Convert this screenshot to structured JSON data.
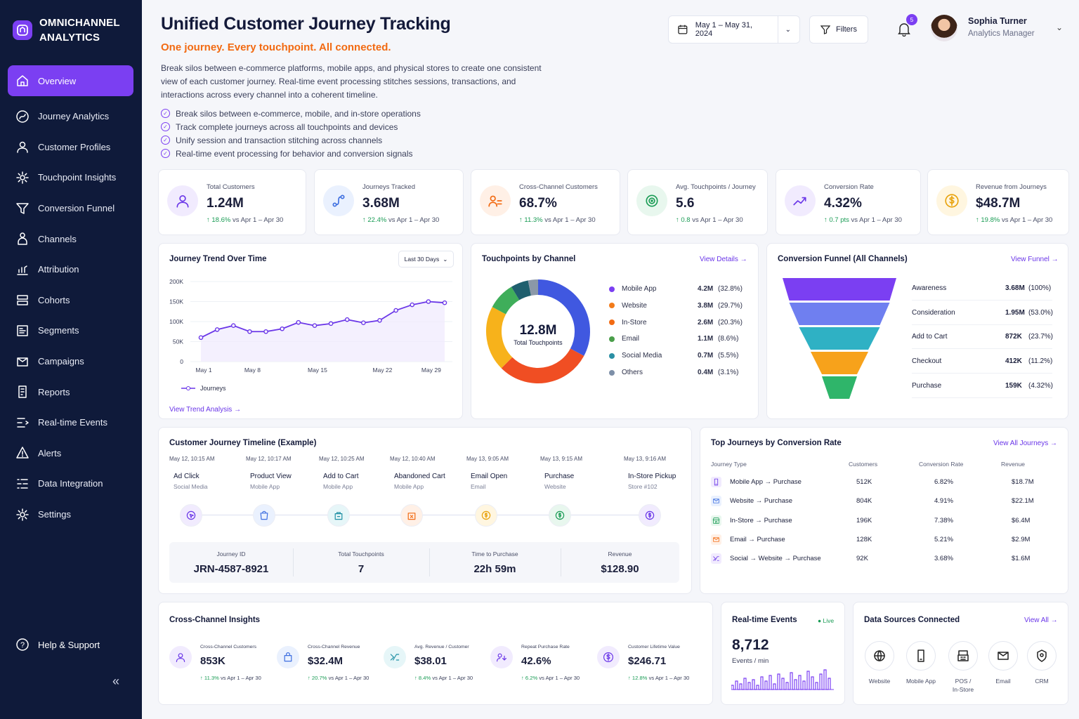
{
  "app": {
    "name_line1": "OMNICHANNEL",
    "name_line2": "ANALYTICS"
  },
  "nav": [
    {
      "label": "Overview",
      "icon": "home-icon"
    },
    {
      "label": "Journey Analytics",
      "icon": "journey-icon"
    },
    {
      "label": "Customer Profiles",
      "icon": "user-icon"
    },
    {
      "label": "Touchpoint Insights",
      "icon": "gear-icon"
    },
    {
      "label": "Conversion Funnel",
      "icon": "funnel-icon"
    },
    {
      "label": "Channels",
      "icon": "channels-icon"
    },
    {
      "label": "Attribution",
      "icon": "attribution-icon"
    },
    {
      "label": "Cohorts",
      "icon": "cohorts-icon"
    },
    {
      "label": "Segments",
      "icon": "segments-icon"
    },
    {
      "label": "Campaigns",
      "icon": "campaigns-icon"
    },
    {
      "label": "Reports",
      "icon": "reports-icon"
    },
    {
      "label": "Real-time Events",
      "icon": "realtime-icon"
    },
    {
      "label": "Alerts",
      "icon": "alert-icon"
    },
    {
      "label": "Data Integration",
      "icon": "integration-icon"
    },
    {
      "label": "Settings",
      "icon": "settings-icon"
    }
  ],
  "help": "Help & Support",
  "header": {
    "title": "Unified Customer Journey Tracking",
    "subtitle": "One journey. Every touchpoint. All connected.",
    "description": "Break silos between e-commerce platforms, mobile apps, and physical stores to create one consistent view of each customer journey. Real-time event processing stitches sessions, transactions, and interactions across every channel into a coherent timeline.",
    "checks": [
      "Break silos between e-commerce, mobile, and in-store operations",
      "Track complete journeys across all touchpoints and devices",
      "Unify session and transaction stitching across channels",
      "Real-time event processing for behavior and conversion signals"
    ],
    "date_range": "May 1 – May 31, 2024",
    "filters": "Filters",
    "notifications": "5",
    "user_name": "Sophia Turner",
    "user_role": "Analytics Manager"
  },
  "kpis": [
    {
      "label": "Total Customers",
      "value": "1.24M",
      "delta": "↑ 18.6%",
      "compare": " vs Apr 1 – Apr 30",
      "icon": "users-icon",
      "bg": "#f1ebfe",
      "fg": "#6a36e8"
    },
    {
      "label": "Journeys Tracked",
      "value": "3.68M",
      "delta": "↑ 22.4%",
      "compare": " vs Apr 1 – Apr 30",
      "icon": "route-icon",
      "bg": "#eaf1fe",
      "fg": "#3e6fe0"
    },
    {
      "label": "Cross-Channel Customers",
      "value": "68.7%",
      "delta": "↑ 11.3%",
      "compare": " vs Apr 1 – Apr 30",
      "icon": "cross-users-icon",
      "bg": "#fff0e6",
      "fg": "#f26a12"
    },
    {
      "label": "Avg. Touchpoints / Journey",
      "value": "5.6",
      "delta": "↑ 0.8",
      "compare": " vs Apr 1 – Apr 30",
      "icon": "target-icon",
      "bg": "#e8f7ee",
      "fg": "#1a9c55"
    },
    {
      "label": "Conversion Rate",
      "value": "4.32%",
      "delta": "↑ 0.7 pts",
      "compare": " vs Apr 1 – Apr 30",
      "icon": "trend-icon",
      "bg": "#f1ebfe",
      "fg": "#6a36e8"
    },
    {
      "label": "Revenue from Journeys",
      "value": "$48.7M",
      "delta": "↑ 19.8%",
      "compare": " vs Apr 1 – Apr 30",
      "icon": "dollar-icon",
      "bg": "#fff6e0",
      "fg": "#e8a20c"
    }
  ],
  "trend": {
    "title": "Journey Trend Over Time",
    "range": "Last 30 Days",
    "legend": "Journeys",
    "link": "View Trend Analysis →"
  },
  "chart_data": [
    {
      "type": "line",
      "title": "Journey Trend Over Time",
      "x": [
        "May 1",
        "May 3",
        "May 5",
        "May 8",
        "May 10",
        "May 12",
        "May 14",
        "May 15",
        "May 17",
        "May 19",
        "May 20",
        "May 22",
        "May 24",
        "May 26",
        "May 29",
        "May 31"
      ],
      "xticks": [
        "May 1",
        "May 8",
        "May 15",
        "May 22",
        "May 29"
      ],
      "yticks": [
        "0",
        "50K",
        "100K",
        "150K",
        "200K"
      ],
      "ylim": [
        0,
        200000
      ],
      "series": [
        {
          "name": "Journeys",
          "values": [
            60000,
            80000,
            90000,
            75000,
            75000,
            82000,
            98000,
            90000,
            95000,
            105000,
            97000,
            103000,
            128000,
            142000,
            150000,
            147000
          ]
        }
      ],
      "grid": true,
      "legend_position": "bottom-left"
    },
    {
      "type": "pie",
      "title": "Touchpoints by Channel",
      "center_value": "12.8M",
      "center_label": "Total Touchpoints",
      "slices": [
        {
          "name": "Mobile App",
          "value": "4.2M",
          "pct": "(32.8%)",
          "share": 32.8,
          "color": "#4058e0"
        },
        {
          "name": "Website",
          "value": "3.8M",
          "pct": "(29.7%)",
          "share": 29.7,
          "color": "#f04e23"
        },
        {
          "name": "In-Store",
          "value": "2.6M",
          "pct": "(20.3%)",
          "share": 20.3,
          "color": "#f7b21b"
        },
        {
          "name": "Email",
          "value": "1.1M",
          "pct": "(8.6%)",
          "share": 8.6,
          "color": "#3fae5a"
        },
        {
          "name": "Social Media",
          "value": "0.7M",
          "pct": "(5.5%)",
          "share": 5.5,
          "color": "#1f5f6e"
        },
        {
          "name": "Others",
          "value": "0.4M",
          "pct": "(3.1%)",
          "share": 3.1,
          "color": "#8b98a8"
        }
      ],
      "legend_dot_colors": [
        "#7b3ff2",
        "#f27b1a",
        "#f26a12",
        "#4a9e4a",
        "#2a8fa4",
        "#7d8fa8"
      ]
    },
    {
      "type": "bar",
      "title": "Conversion Funnel (All Channels)",
      "categories": [
        "Awareness",
        "Consideration",
        "Add to Cart",
        "Checkout",
        "Purchase"
      ],
      "values": [
        "3.68M",
        "1.95M",
        "872K",
        "412K",
        "159K"
      ],
      "pct": [
        "(100%)",
        "(53.0%)",
        "(23.7%)",
        "(11.2%)",
        "(4.32%)"
      ],
      "shares": [
        100,
        53.0,
        23.7,
        11.2,
        4.32
      ],
      "colors": [
        "#7b3ff2",
        "#6f7ff0",
        "#2fb1c4",
        "#f7a21b",
        "#2fb56a"
      ]
    }
  ],
  "touchpoints": {
    "title": "Touchpoints by Channel",
    "link": "View Details →"
  },
  "funnel": {
    "title": "Conversion Funnel (All Channels)",
    "link": "View Funnel →"
  },
  "timeline": {
    "title": "Customer Journey Timeline (Example)",
    "steps": [
      {
        "time": "May 12, 10:15 AM",
        "event": "Ad Click",
        "channel": "Social Media",
        "color": "#6a36e8",
        "bg": "#f1ebfe",
        "icon": "ad-click-icon"
      },
      {
        "time": "May 12, 10:17 AM",
        "event": "Product View",
        "channel": "Mobile App",
        "color": "#3e6fe0",
        "bg": "#eaf1fe",
        "icon": "product-view-icon"
      },
      {
        "time": "May 12, 10:25 AM",
        "event": "Add to Cart",
        "channel": "Mobile App",
        "color": "#1f8fa4",
        "bg": "#e6f6f8",
        "icon": "cart-icon"
      },
      {
        "time": "May 12, 10:40 AM",
        "event": "Abandoned Cart",
        "channel": "Mobile App",
        "color": "#f26a12",
        "bg": "#fff0e6",
        "icon": "abandoned-cart-icon"
      },
      {
        "time": "May 13, 9:05 AM",
        "event": "Email Open",
        "channel": "Email",
        "color": "#e8a20c",
        "bg": "#fff6e0",
        "icon": "email-open-icon"
      },
      {
        "time": "May 13, 9:15 AM",
        "event": "Purchase",
        "channel": "Website",
        "color": "#1a9c55",
        "bg": "#e8f7ee",
        "icon": "purchase-icon"
      },
      {
        "time": "May 13, 9:16 AM",
        "event": "In-Store Pickup",
        "channel": "Store #102",
        "color": "#6a36e8",
        "bg": "#f1ebfe",
        "icon": "pickup-icon"
      }
    ],
    "summary": [
      {
        "label": "Journey ID",
        "value": "JRN-4587-8921"
      },
      {
        "label": "Total Touchpoints",
        "value": "7"
      },
      {
        "label": "Time to Purchase",
        "value": "22h 59m"
      },
      {
        "label": "Revenue",
        "value": "$128.90"
      }
    ]
  },
  "top_journeys": {
    "title": "Top Journeys by Conversion Rate",
    "link": "View All Journeys →",
    "columns": [
      "Journey Type",
      "Customers",
      "Conversion Rate",
      "Revenue"
    ],
    "rows": [
      {
        "type": "Mobile App → Purchase",
        "customers": "512K",
        "rate": "6.82%",
        "revenue": "$18.7M",
        "icon": "mobile-icon",
        "color": "#6a36e8",
        "bg": "#f1ebfe"
      },
      {
        "type": "Website → Purchase",
        "customers": "804K",
        "rate": "4.91%",
        "revenue": "$22.1M",
        "icon": "website-icon",
        "color": "#3e6fe0",
        "bg": "#eaf1fe"
      },
      {
        "type": "In-Store → Purchase",
        "customers": "196K",
        "rate": "7.38%",
        "revenue": "$6.4M",
        "icon": "store-icon",
        "color": "#1a9c55",
        "bg": "#e8f7ee"
      },
      {
        "type": "Email → Purchase",
        "customers": "128K",
        "rate": "5.21%",
        "revenue": "$2.9M",
        "icon": "email-icon",
        "color": "#f26a12",
        "bg": "#fff0e6"
      },
      {
        "type": "Social → Website → Purchase",
        "customers": "92K",
        "rate": "3.68%",
        "revenue": "$1.6M",
        "icon": "social-icon",
        "color": "#6a36e8",
        "bg": "#f1ebfe"
      }
    ]
  },
  "insights": {
    "title": "Cross-Channel Insights",
    "items": [
      {
        "label": "Cross-Channel Customers",
        "value": "853K",
        "delta": "↑ 11.3%",
        "compare": " vs Apr 1 – Apr 30",
        "color": "#6a36e8",
        "bg": "#f1ebfe",
        "icon": "users-icon"
      },
      {
        "label": "Cross-Channel Revenue",
        "value": "$32.4M",
        "delta": "↑ 20.7%",
        "compare": " vs Apr 1 – Apr 30",
        "color": "#3e6fe0",
        "bg": "#eaf1fe",
        "icon": "bag-icon"
      },
      {
        "label": "Avg. Revenue / Customer",
        "value": "$38.01",
        "delta": "↑ 8.4%",
        "compare": " vs Apr 1 – Apr 30",
        "color": "#1f8fa4",
        "bg": "#e6f6f8",
        "icon": "shuffle-icon"
      },
      {
        "label": "Repeat Purchase Rate",
        "value": "42.6%",
        "delta": "↑ 6.2%",
        "compare": " vs Apr 1 – Apr 30",
        "color": "#6a36e8",
        "bg": "#f1ebfe",
        "icon": "repeat-icon"
      },
      {
        "label": "Customer Lifetime Value",
        "value": "$246.71",
        "delta": "↑ 12.8%",
        "compare": " vs Apr 1 – Apr 30",
        "color": "#6a36e8",
        "bg": "#f1ebfe",
        "icon": "dollar-icon"
      }
    ]
  },
  "realtime": {
    "title": "Real-time Events",
    "live": "● Live",
    "value": "8,712",
    "unit": "Events / min"
  },
  "sources": {
    "title": "Data Sources Connected",
    "link": "View All →",
    "items": [
      {
        "line1": "Website",
        "line2": "",
        "icon": "globe-icon"
      },
      {
        "line1": "Mobile App",
        "line2": "",
        "icon": "mobile-icon"
      },
      {
        "line1": "POS /",
        "line2": "In-Store",
        "icon": "pos-icon"
      },
      {
        "line1": "Email",
        "line2": "",
        "icon": "email-icon"
      },
      {
        "line1": "CRM",
        "line2": "",
        "icon": "crm-icon"
      }
    ]
  }
}
